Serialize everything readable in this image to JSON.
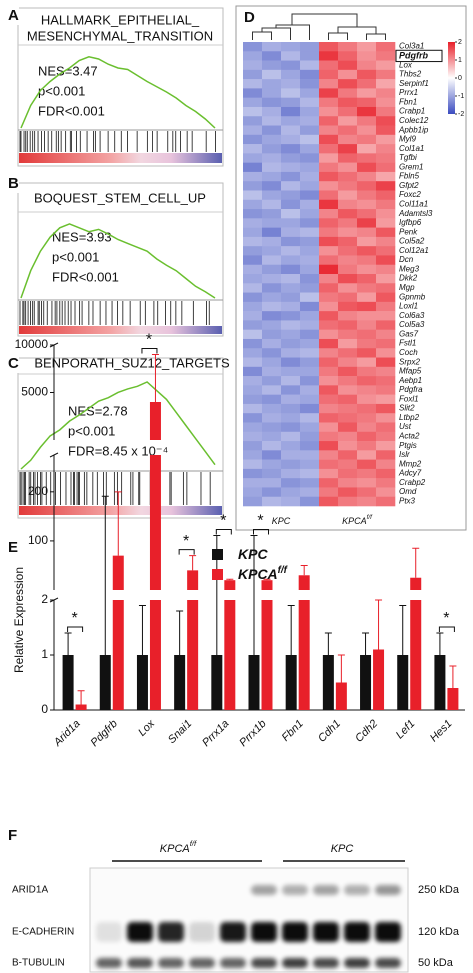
{
  "chart_data": [
    {
      "type": "gsea",
      "panel": "A",
      "title": [
        "HALLMARK_EPITHELIAL_",
        "MESENCHYMAL_TRANSITION"
      ],
      "stats": [
        "NES=3.47",
        "p<0.001",
        "FDR<0.001"
      ],
      "values": [
        0,
        0.3,
        0.5,
        0.62,
        0.72,
        0.8,
        0.9,
        0.95,
        0.92,
        0.85,
        0.8,
        0.78,
        0.7,
        0.62,
        0.55,
        0.48,
        0.4,
        0.3,
        0.22,
        0.12,
        0
      ],
      "ylim": [
        0,
        1
      ],
      "color": "#6abf2f"
    },
    {
      "type": "gsea",
      "panel": "B",
      "title": [
        "BOQUEST_STEM_CELL_UP"
      ],
      "stats": [
        "NES=3.93",
        "p<0.001",
        "FDR<0.001"
      ],
      "values": [
        0,
        0.35,
        0.6,
        0.78,
        0.9,
        0.95,
        0.9,
        0.85,
        0.88,
        0.82,
        0.75,
        0.7,
        0.65,
        0.6,
        0.5,
        0.42,
        0.35,
        0.25,
        0.15,
        0.08,
        0
      ],
      "ylim": [
        0,
        1
      ],
      "color": "#6abf2f"
    },
    {
      "type": "gsea",
      "panel": "C",
      "title": [
        "BENPORATH_SUZ12_TARGETS"
      ],
      "stats": [
        "NES=2.78",
        "p<0.001",
        "FDR=8.45 x 10⁻⁴"
      ],
      "values": [
        0,
        0.1,
        0.25,
        0.38,
        0.45,
        0.55,
        0.62,
        0.7,
        0.78,
        0.82,
        0.88,
        0.92,
        0.95,
        1,
        0.9,
        0.8,
        0.65,
        0.5,
        0.35,
        0.2,
        0.05
      ],
      "ylim": [
        0,
        1
      ],
      "color": "#6abf2f"
    },
    {
      "type": "heatmap",
      "panel": "D",
      "groups": [
        {
          "text": "KPC"
        },
        {
          "text": "KPCA",
          "sup": "f/f"
        }
      ],
      "highlight": "Pdgfrb",
      "rows": [
        "Col3a1",
        "Pdgfrb",
        "Lox",
        "Thbs2",
        "Serpinf1",
        "Prrx1",
        "Fbn1",
        "Crabp1",
        "Colec12",
        "Apbb1ip",
        "Myl9",
        "Col1a1",
        "Tgfbi",
        "Grem1",
        "Fbln5",
        "Gfpt2",
        "Foxc2",
        "Col11a1",
        "Adamtsl3",
        "Igfbp6",
        "Penk",
        "Col5a2",
        "Col12a1",
        "Dcn",
        "Meg3",
        "Dkk2",
        "Mgp",
        "Gpnmb",
        "Loxl1",
        "Col6a3",
        "Col5a3",
        "Gas7",
        "Fstl1",
        "Coch",
        "Srpx2",
        "Mfap5",
        "Aebp1",
        "Pdgfra",
        "Foxl1",
        "Slit2",
        "Ltbp2",
        "Ust",
        "Acta2",
        "Ptgis",
        "Islr",
        "Mmp2",
        "Adcy7",
        "Crabp2",
        "Omd",
        "Ptx3"
      ],
      "values": [
        [
          -1.2,
          -0.9,
          -1.0,
          -1.1,
          1.5,
          1.2,
          0.9,
          1.3
        ],
        [
          -1.0,
          -1.3,
          -0.8,
          -1.1,
          1.8,
          1.4,
          1.0,
          1.2
        ],
        [
          -0.9,
          -1.1,
          -1.2,
          -0.8,
          1.3,
          1.6,
          1.1,
          0.9
        ],
        [
          -1.1,
          -0.7,
          -1.0,
          -1.3,
          1.4,
          1.0,
          1.5,
          1.2
        ],
        [
          -0.8,
          -1.0,
          -0.9,
          -1.2,
          1.1,
          1.6,
          1.3,
          0.8
        ],
        [
          -1.3,
          -1.0,
          -0.7,
          -1.0,
          1.7,
          1.2,
          0.9,
          1.1
        ],
        [
          -1.0,
          -1.2,
          -1.1,
          -0.8,
          1.2,
          1.5,
          1.4,
          1.0
        ],
        [
          -0.7,
          -0.9,
          -1.4,
          -1.0,
          1.0,
          1.3,
          1.8,
          1.2
        ],
        [
          -1.1,
          -0.8,
          -1.0,
          -0.9,
          1.4,
          0.9,
          1.2,
          1.6
        ],
        [
          -0.9,
          -1.2,
          -0.8,
          -1.1,
          1.1,
          1.3,
          1.0,
          1.5
        ],
        [
          -1.2,
          -1.0,
          -0.9,
          -0.7,
          1.6,
          1.1,
          1.2,
          0.9
        ],
        [
          -0.8,
          -1.1,
          -1.3,
          -1.0,
          1.3,
          1.7,
          0.8,
          1.1
        ],
        [
          -1.0,
          -0.9,
          -1.1,
          -1.2,
          0.9,
          1.4,
          1.3,
          1.2
        ],
        [
          -1.4,
          -0.8,
          -0.9,
          -1.0,
          1.2,
          1.0,
          1.6,
          1.3
        ],
        [
          -0.9,
          -1.0,
          -1.2,
          -0.9,
          1.5,
          1.3,
          1.1,
          0.8
        ],
        [
          -1.1,
          -1.3,
          -0.8,
          -1.0,
          1.0,
          1.2,
          1.4,
          1.7
        ],
        [
          -0.7,
          -1.0,
          -1.1,
          -1.3,
          1.3,
          0.9,
          1.2,
          1.4
        ],
        [
          -1.0,
          -0.8,
          -1.2,
          -0.9,
          1.8,
          1.1,
          1.0,
          1.2
        ],
        [
          -1.2,
          -1.1,
          -0.7,
          -1.0,
          1.1,
          1.5,
          1.3,
          1.0
        ],
        [
          -0.9,
          -1.0,
          -1.0,
          -1.2,
          1.4,
          1.2,
          1.7,
          0.9
        ],
        [
          -1.0,
          -1.4,
          -0.9,
          -0.8,
          1.2,
          1.0,
          1.1,
          1.5
        ],
        [
          -0.8,
          -0.9,
          -1.2,
          -1.1,
          1.6,
          1.4,
          0.9,
          1.1
        ],
        [
          -1.1,
          -1.0,
          -0.8,
          -1.0,
          1.0,
          1.3,
          1.5,
          1.3
        ],
        [
          -1.3,
          -0.8,
          -1.0,
          -0.9,
          1.3,
          1.1,
          1.2,
          1.6
        ],
        [
          -0.9,
          -1.1,
          -1.3,
          -1.0,
          1.9,
          1.2,
          1.0,
          1.1
        ],
        [
          -1.0,
          -0.9,
          -0.8,
          -1.2,
          1.1,
          1.6,
          1.4,
          0.9
        ],
        [
          -0.8,
          -1.2,
          -1.0,
          -1.1,
          1.4,
          1.0,
          1.2,
          1.3
        ],
        [
          -1.2,
          -1.0,
          -1.1,
          -0.7,
          1.2,
          1.3,
          0.9,
          1.5
        ],
        [
          -1.0,
          -0.8,
          -0.9,
          -1.3,
          1.0,
          1.5,
          1.6,
          1.2
        ],
        [
          -0.9,
          -1.3,
          -1.2,
          -1.0,
          1.5,
          1.1,
          1.0,
          1.0
        ],
        [
          -1.1,
          -1.0,
          -0.8,
          -0.9,
          1.3,
          1.4,
          1.1,
          1.4
        ],
        [
          -0.7,
          -1.1,
          -1.0,
          -1.2,
          1.0,
          1.2,
          1.3,
          1.1
        ],
        [
          -1.2,
          -0.9,
          -1.1,
          -1.0,
          1.6,
          0.9,
          1.2,
          1.3
        ],
        [
          -1.0,
          -1.2,
          -0.9,
          -0.8,
          1.1,
          1.3,
          1.5,
          1.0
        ],
        [
          -0.8,
          -1.0,
          -1.3,
          -1.1,
          1.4,
          1.1,
          0.9,
          1.6
        ],
        [
          -1.3,
          -0.9,
          -1.0,
          -1.0,
          1.2,
          1.5,
          1.2,
          1.1
        ],
        [
          -0.9,
          -1.1,
          -0.8,
          -1.2,
          1.0,
          1.2,
          1.4,
          1.3
        ],
        [
          -1.0,
          -0.8,
          -1.2,
          -0.9,
          1.5,
          1.0,
          1.1,
          1.2
        ],
        [
          -1.1,
          -1.2,
          -0.9,
          -1.0,
          1.3,
          1.4,
          1.0,
          0.9
        ],
        [
          -0.8,
          -1.0,
          -1.1,
          -1.3,
          1.1,
          1.2,
          1.3,
          1.5
        ],
        [
          -1.2,
          -0.9,
          -1.0,
          -0.8,
          1.4,
          1.3,
          1.2,
          1.0
        ],
        [
          -1.0,
          -1.1,
          -1.2,
          -1.0,
          1.0,
          1.5,
          1.1,
          1.3
        ],
        [
          -0.9,
          -1.0,
          -0.8,
          -1.1,
          1.2,
          1.1,
          1.4,
          1.2
        ],
        [
          -1.1,
          -0.8,
          -1.0,
          -1.2,
          1.6,
          1.0,
          1.2,
          0.9
        ],
        [
          -1.0,
          -1.3,
          -0.9,
          -0.9,
          1.1,
          1.4,
          0.9,
          1.4
        ],
        [
          -0.8,
          -1.0,
          -1.1,
          -1.0,
          1.3,
          1.2,
          1.5,
          1.1
        ],
        [
          -1.2,
          -1.1,
          -0.9,
          -0.8,
          1.0,
          1.3,
          1.2,
          1.4
        ],
        [
          -0.9,
          -0.9,
          -1.2,
          -1.1,
          1.4,
          1.1,
          1.0,
          1.2
        ],
        [
          -1.0,
          -1.2,
          -1.0,
          -0.9,
          1.2,
          1.5,
          1.3,
          1.0
        ],
        [
          -1.1,
          -0.8,
          -0.9,
          -1.2,
          1.5,
          1.2,
          1.1,
          1.3
        ]
      ],
      "clim": [
        -2,
        2
      ],
      "cticks": [
        2,
        1,
        0,
        -1,
        -2
      ],
      "colors": [
        "#3b4cc0",
        "#ffffff",
        "#e8202a"
      ]
    },
    {
      "type": "broken-bar",
      "panel": "E",
      "ylabel": "Relative Expression",
      "categories": [
        "Arid1a",
        "Pdgfrb",
        "Lox",
        "Snai1",
        "Prrx1a",
        "Prrx1b",
        "Fbn1",
        "Cdh1",
        "Cdh2",
        "Lef1",
        "Hes1"
      ],
      "series": [
        {
          "name": "KPC",
          "color": "#111111",
          "values": [
            1,
            1,
            1,
            1,
            1,
            1,
            1,
            1,
            1,
            1,
            1
          ],
          "errors": [
            0.4,
            190,
            0.9,
            0.8,
            110,
            110,
            0.9,
            0.4,
            0.4,
            0.9,
            0.4
          ]
        },
        {
          "name": "KPCA",
          "sup": "f/f",
          "color": "#e8202a",
          "values": [
            0.1,
            70,
            4000,
            40,
            20,
            20,
            30,
            0.5,
            1.1,
            25,
            0.4
          ],
          "errors": [
            0.25,
            130,
            5000,
            30,
            2,
            2,
            20,
            0.5,
            0.9,
            60,
            0.4
          ]
        }
      ],
      "significance": [
        "*",
        null,
        "*",
        "*",
        "*",
        "*",
        null,
        null,
        null,
        null,
        "*"
      ],
      "ylim_segments": [
        [
          0,
          2
        ],
        [
          0,
          275
        ],
        [
          0,
          10000
        ]
      ],
      "yticks": [
        [
          0,
          1,
          2
        ],
        [
          100,
          200
        ],
        [
          {
            "value": 5000,
            "label": "5000"
          },
          {
            "value": 10000,
            "label": "10000"
          }
        ]
      ]
    }
  ],
  "blot": {
    "panel": "F",
    "groups": [
      {
        "text": "KPCA",
        "sup": "f/f"
      },
      {
        "text": "KPC"
      }
    ],
    "rows": [
      {
        "label": "ARID1A",
        "size": "250 kDa"
      },
      {
        "label": "E-CADHERIN",
        "size": "120 kDa"
      },
      {
        "label": "B-TUBULIN",
        "size": "50 kDa"
      }
    ]
  }
}
